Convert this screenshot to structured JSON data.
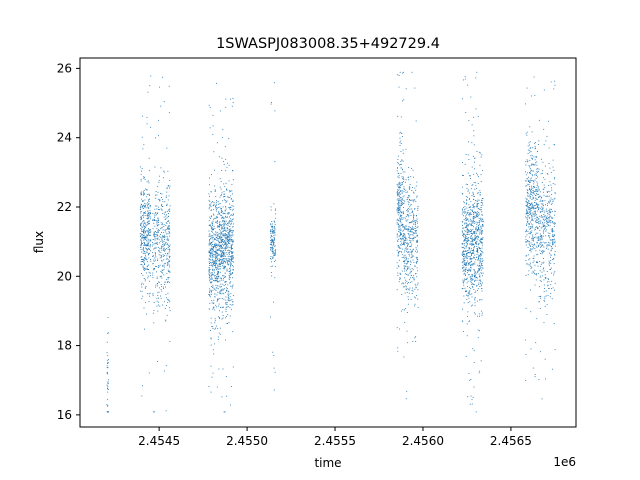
{
  "chart_data": {
    "type": "scatter",
    "title": "1SWASPJ083008.35+492729.4",
    "xlabel": "time",
    "ylabel": "flux",
    "x_offset_label": "1e6",
    "x_ticks": [
      2.4545,
      2.455,
      2.4555,
      2.456,
      2.4565
    ],
    "x_tick_labels": [
      "2.4545",
      "2.4550",
      "2.4555",
      "2.4560",
      "2.4565"
    ],
    "y_ticks": [
      16,
      18,
      20,
      22,
      24,
      26
    ],
    "y_tick_labels": [
      "16",
      "18",
      "20",
      "22",
      "24",
      "26"
    ],
    "xlim": [
      2.45405,
      2.45687
    ],
    "ylim": [
      15.65,
      26.3
    ],
    "grid": false,
    "marker_color": "#1f77b4",
    "clusters": [
      {
        "x_range": [
          2.4542,
          2.45421
        ],
        "center": 17.0,
        "spread": 0.9,
        "count": 40
      },
      {
        "x_range": [
          2.45439,
          2.45445
        ],
        "center": 21.2,
        "spread": 0.8,
        "count": 380
      },
      {
        "x_range": [
          2.45446,
          2.45456
        ],
        "center": 20.9,
        "spread": 0.9,
        "count": 420
      },
      {
        "x_range": [
          2.45478,
          2.45485
        ],
        "center": 20.6,
        "spread": 0.9,
        "count": 560
      },
      {
        "x_range": [
          2.45485,
          2.45492
        ],
        "center": 20.8,
        "spread": 0.9,
        "count": 560
      },
      {
        "x_range": [
          2.45513,
          2.45516
        ],
        "center": 21.0,
        "spread": 0.35,
        "count": 140
      },
      {
        "x_range": [
          2.45585,
          2.45589
        ],
        "center": 21.8,
        "spread": 1.0,
        "count": 300
      },
      {
        "x_range": [
          2.45589,
          2.45597
        ],
        "center": 21.0,
        "spread": 0.9,
        "count": 380
      },
      {
        "x_range": [
          2.45622,
          2.45628
        ],
        "center": 20.8,
        "spread": 0.9,
        "count": 420
      },
      {
        "x_range": [
          2.45628,
          2.45634
        ],
        "center": 21.0,
        "spread": 1.0,
        "count": 420
      },
      {
        "x_range": [
          2.45658,
          2.45665
        ],
        "center": 22.0,
        "spread": 0.9,
        "count": 420
      },
      {
        "x_range": [
          2.45665,
          2.45675
        ],
        "center": 21.3,
        "spread": 1.0,
        "count": 420
      }
    ]
  }
}
